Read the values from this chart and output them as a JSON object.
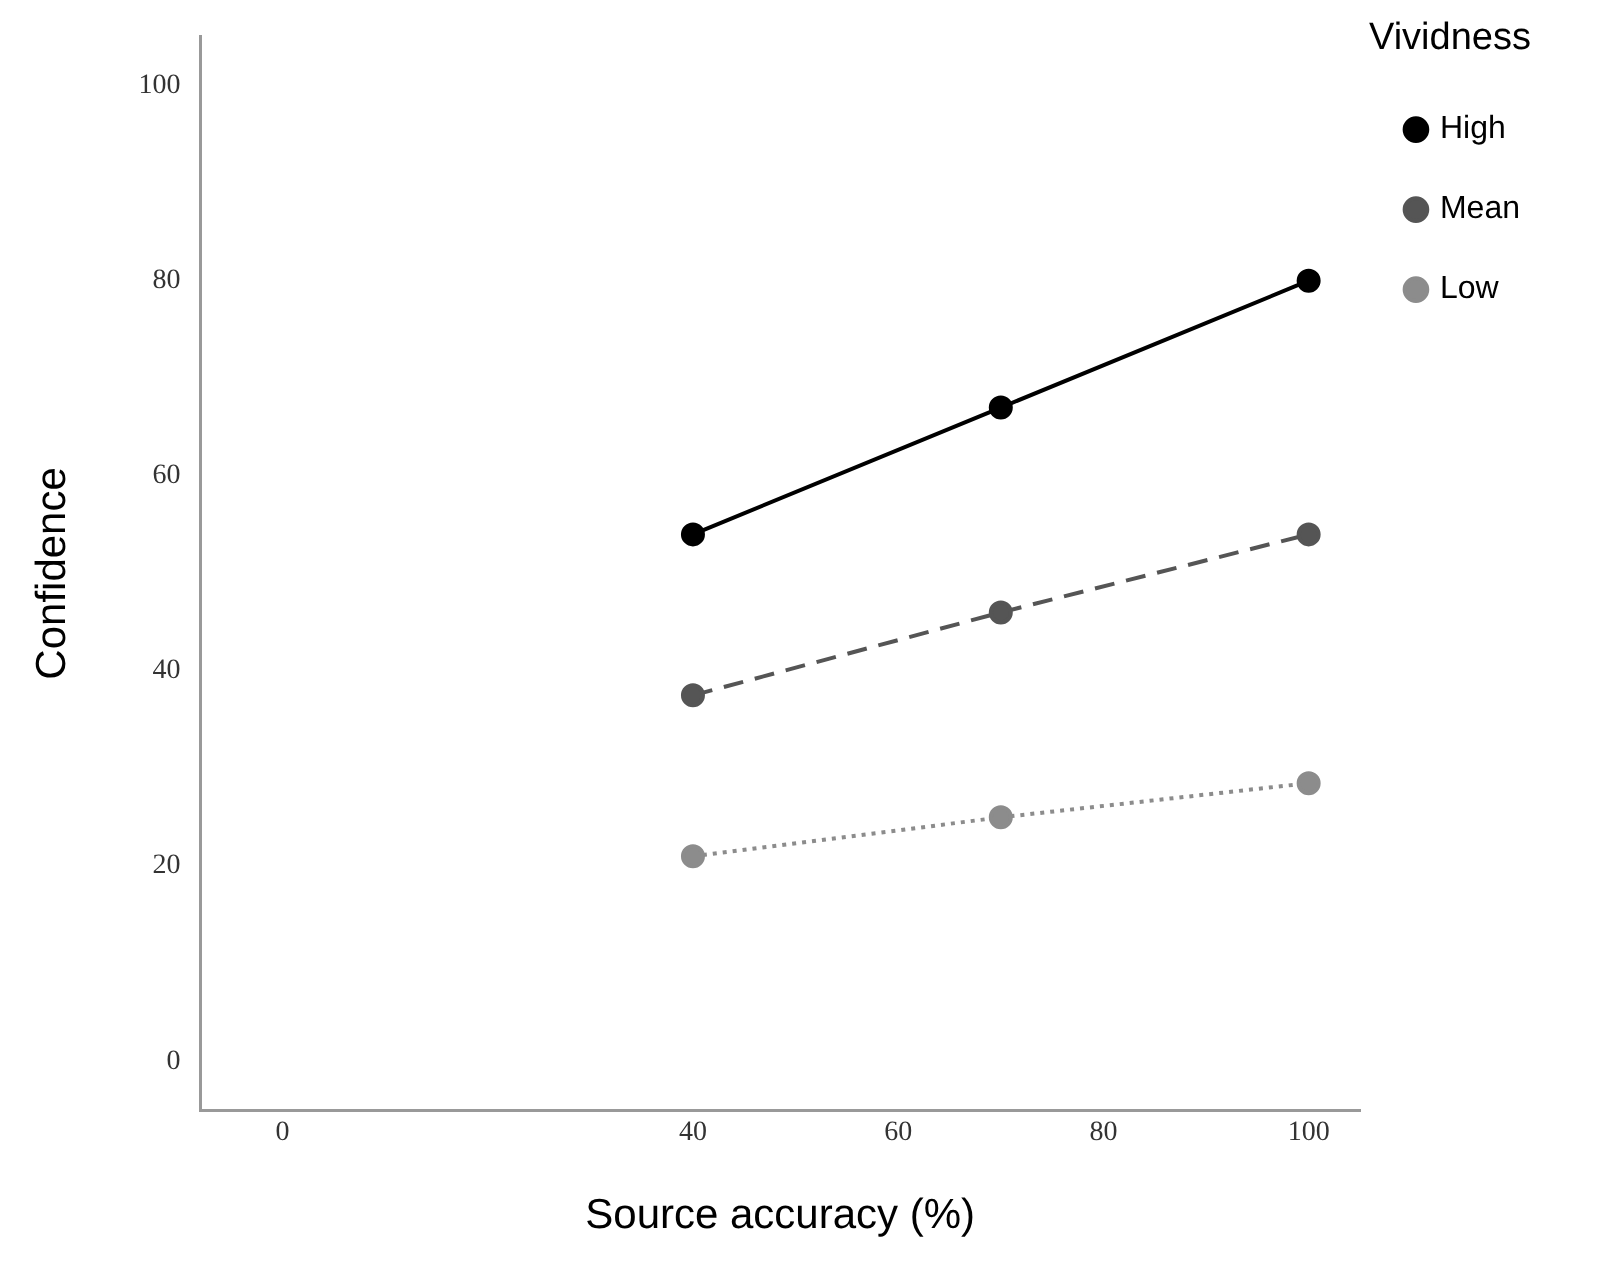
{
  "chart_data": {
    "type": "line",
    "xlabel": "Source accuracy (%)",
    "ylabel": "Confidence",
    "legend_title": "Vividness",
    "x": [
      40,
      70,
      100
    ],
    "series": [
      {
        "name": "High",
        "color": "#000000",
        "values": [
          54,
          67,
          80
        ],
        "line_style": "solid"
      },
      {
        "name": "Mean",
        "color": "#555555",
        "values": [
          37.5,
          46,
          54
        ],
        "line_style": "dashed"
      },
      {
        "name": "Low",
        "color": "#8c8c8c",
        "values": [
          21,
          25,
          28.5
        ],
        "line_style": "dotted"
      }
    ],
    "xlim": [
      -8,
      105
    ],
    "xticks": [
      0,
      40,
      60,
      80,
      100
    ],
    "ylim": [
      -5,
      105
    ],
    "yticks": [
      0,
      20,
      40,
      60,
      80,
      100
    ],
    "grid": false,
    "legend": "top right",
    "marker": "circle"
  }
}
